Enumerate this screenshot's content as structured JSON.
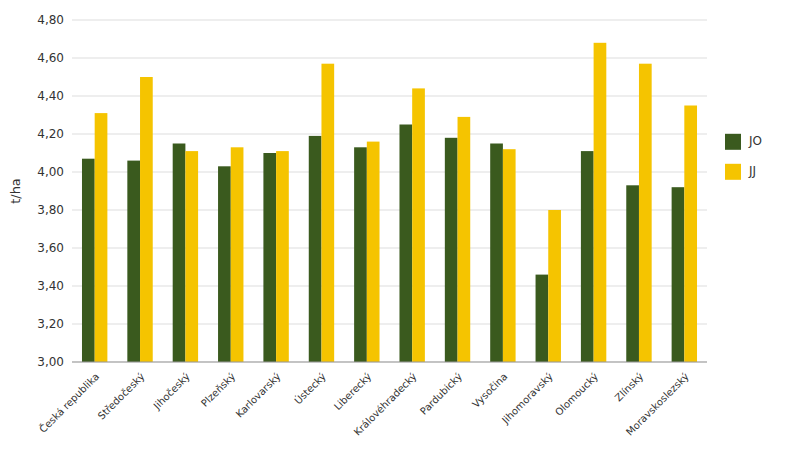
{
  "chart_data": {
    "type": "bar",
    "categories": [
      "Česká republika",
      "Středočeský",
      "Jihočeský",
      "Plzeňský",
      "Karlovarský",
      "Ústecký",
      "Liberecký",
      "Královéhradecký",
      "Pardubický",
      "Vysočina",
      "Jihomoravský",
      "Olomoucký",
      "Zlínský",
      "Moravskoslezský"
    ],
    "series": [
      {
        "name": "JO",
        "color": "#3a5a1e",
        "values": [
          4.07,
          4.06,
          4.15,
          4.03,
          4.1,
          4.19,
          4.13,
          4.25,
          4.18,
          4.15,
          3.46,
          4.11,
          3.93,
          3.92
        ]
      },
      {
        "name": "JJ",
        "color": "#f5c400",
        "values": [
          4.31,
          4.5,
          4.11,
          4.13,
          4.11,
          4.57,
          4.16,
          4.44,
          4.29,
          4.12,
          3.8,
          4.68,
          4.57,
          4.35
        ]
      }
    ],
    "ylabel": "t/ha",
    "ylim": [
      3.0,
      4.8
    ],
    "yticks": [
      {
        "value": 3.0,
        "label": "3,00"
      },
      {
        "value": 3.2,
        "label": "3,20"
      },
      {
        "value": 3.4,
        "label": "3,40"
      },
      {
        "value": 3.6,
        "label": "3,60"
      },
      {
        "value": 3.8,
        "label": "3,80"
      },
      {
        "value": 4.0,
        "label": "4,00"
      },
      {
        "value": 4.2,
        "label": "4,20"
      },
      {
        "value": 4.4,
        "label": "4,40"
      },
      {
        "value": 4.6,
        "label": "4,60"
      },
      {
        "value": 4.8,
        "label": "4,80"
      }
    ],
    "grid": true,
    "legend": "right"
  }
}
